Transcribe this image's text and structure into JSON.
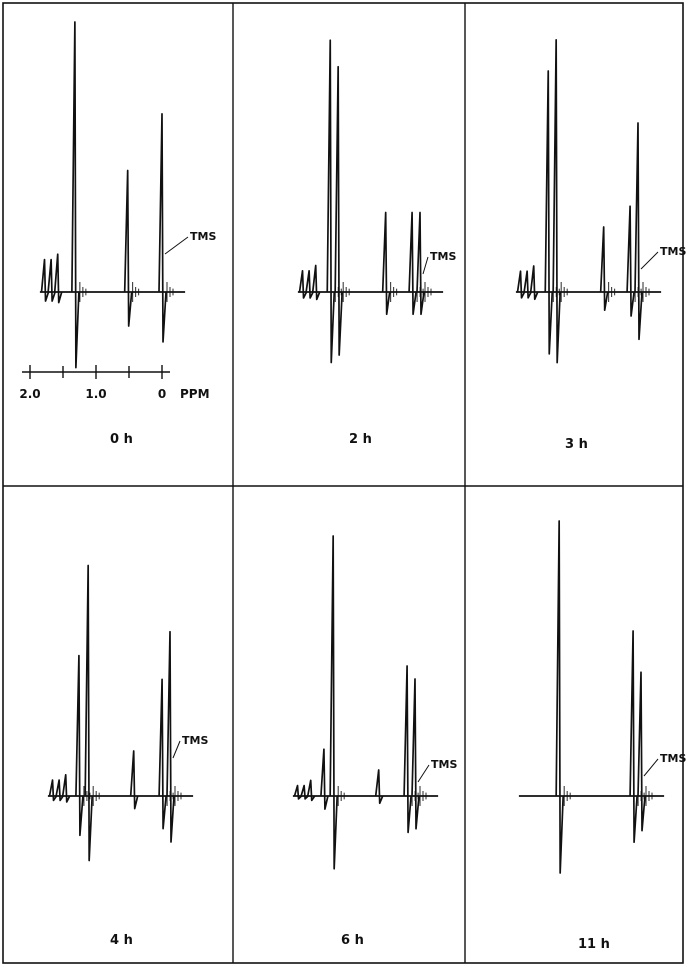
{
  "chart_data": {
    "type": "line",
    "x_unit": "PPM",
    "axis_ticks": [
      {
        "value": 2.0,
        "label": "2.0"
      },
      {
        "value": 1.0,
        "label": "1.0"
      },
      {
        "value": 0,
        "label": "0"
      }
    ],
    "axis_unit_label": "PPM",
    "reference_label": "TMS",
    "colors": {
      "ink": "#111111",
      "background": "#ffffff"
    },
    "panels": [
      {
        "label": "0 h",
        "peaks": [
          {
            "ppm": 1.78,
            "height": 0.12
          },
          {
            "ppm": 1.68,
            "height": 0.12
          },
          {
            "ppm": 1.58,
            "height": 0.14
          },
          {
            "ppm": 1.32,
            "height": 1.0
          },
          {
            "ppm": 0.52,
            "height": 0.45
          },
          {
            "ppm": 0.0,
            "height": 0.66
          }
        ]
      },
      {
        "label": "2 h",
        "peaks": [
          {
            "ppm": 1.78,
            "height": 0.08
          },
          {
            "ppm": 1.68,
            "height": 0.08
          },
          {
            "ppm": 1.58,
            "height": 0.1
          },
          {
            "ppm": 1.36,
            "height": 0.95
          },
          {
            "ppm": 1.24,
            "height": 0.85
          },
          {
            "ppm": 0.52,
            "height": 0.3
          },
          {
            "ppm": 0.12,
            "height": 0.3
          },
          {
            "ppm": 0.0,
            "height": 0.3
          }
        ]
      },
      {
        "label": "3 h",
        "peaks": [
          {
            "ppm": 1.78,
            "height": 0.08
          },
          {
            "ppm": 1.68,
            "height": 0.08
          },
          {
            "ppm": 1.58,
            "height": 0.1
          },
          {
            "ppm": 1.36,
            "height": 0.85
          },
          {
            "ppm": 1.24,
            "height": 0.97
          },
          {
            "ppm": 0.52,
            "height": 0.25
          },
          {
            "ppm": 0.12,
            "height": 0.33
          },
          {
            "ppm": 0.0,
            "height": 0.65
          }
        ]
      },
      {
        "label": "4 h",
        "peaks": [
          {
            "ppm": 1.78,
            "height": 0.06
          },
          {
            "ppm": 1.68,
            "height": 0.06
          },
          {
            "ppm": 1.58,
            "height": 0.08
          },
          {
            "ppm": 1.38,
            "height": 0.53
          },
          {
            "ppm": 1.24,
            "height": 0.87
          },
          {
            "ppm": 0.55,
            "height": 0.17
          },
          {
            "ppm": 0.12,
            "height": 0.44
          },
          {
            "ppm": 0.0,
            "height": 0.62
          }
        ]
      },
      {
        "label": "6 h",
        "peaks": [
          {
            "ppm": 1.78,
            "height": 0.04
          },
          {
            "ppm": 1.68,
            "height": 0.04
          },
          {
            "ppm": 1.58,
            "height": 0.06
          },
          {
            "ppm": 1.38,
            "height": 0.18
          },
          {
            "ppm": 1.24,
            "height": 1.0
          },
          {
            "ppm": 0.55,
            "height": 0.1
          },
          {
            "ppm": 0.12,
            "height": 0.5
          },
          {
            "ppm": 0.0,
            "height": 0.45
          }
        ]
      },
      {
        "label": "11 h",
        "peaks": [
          {
            "ppm": 1.24,
            "height": 1.0
          },
          {
            "ppm": 0.12,
            "height": 0.6
          },
          {
            "ppm": 0.0,
            "height": 0.45
          }
        ]
      }
    ]
  }
}
